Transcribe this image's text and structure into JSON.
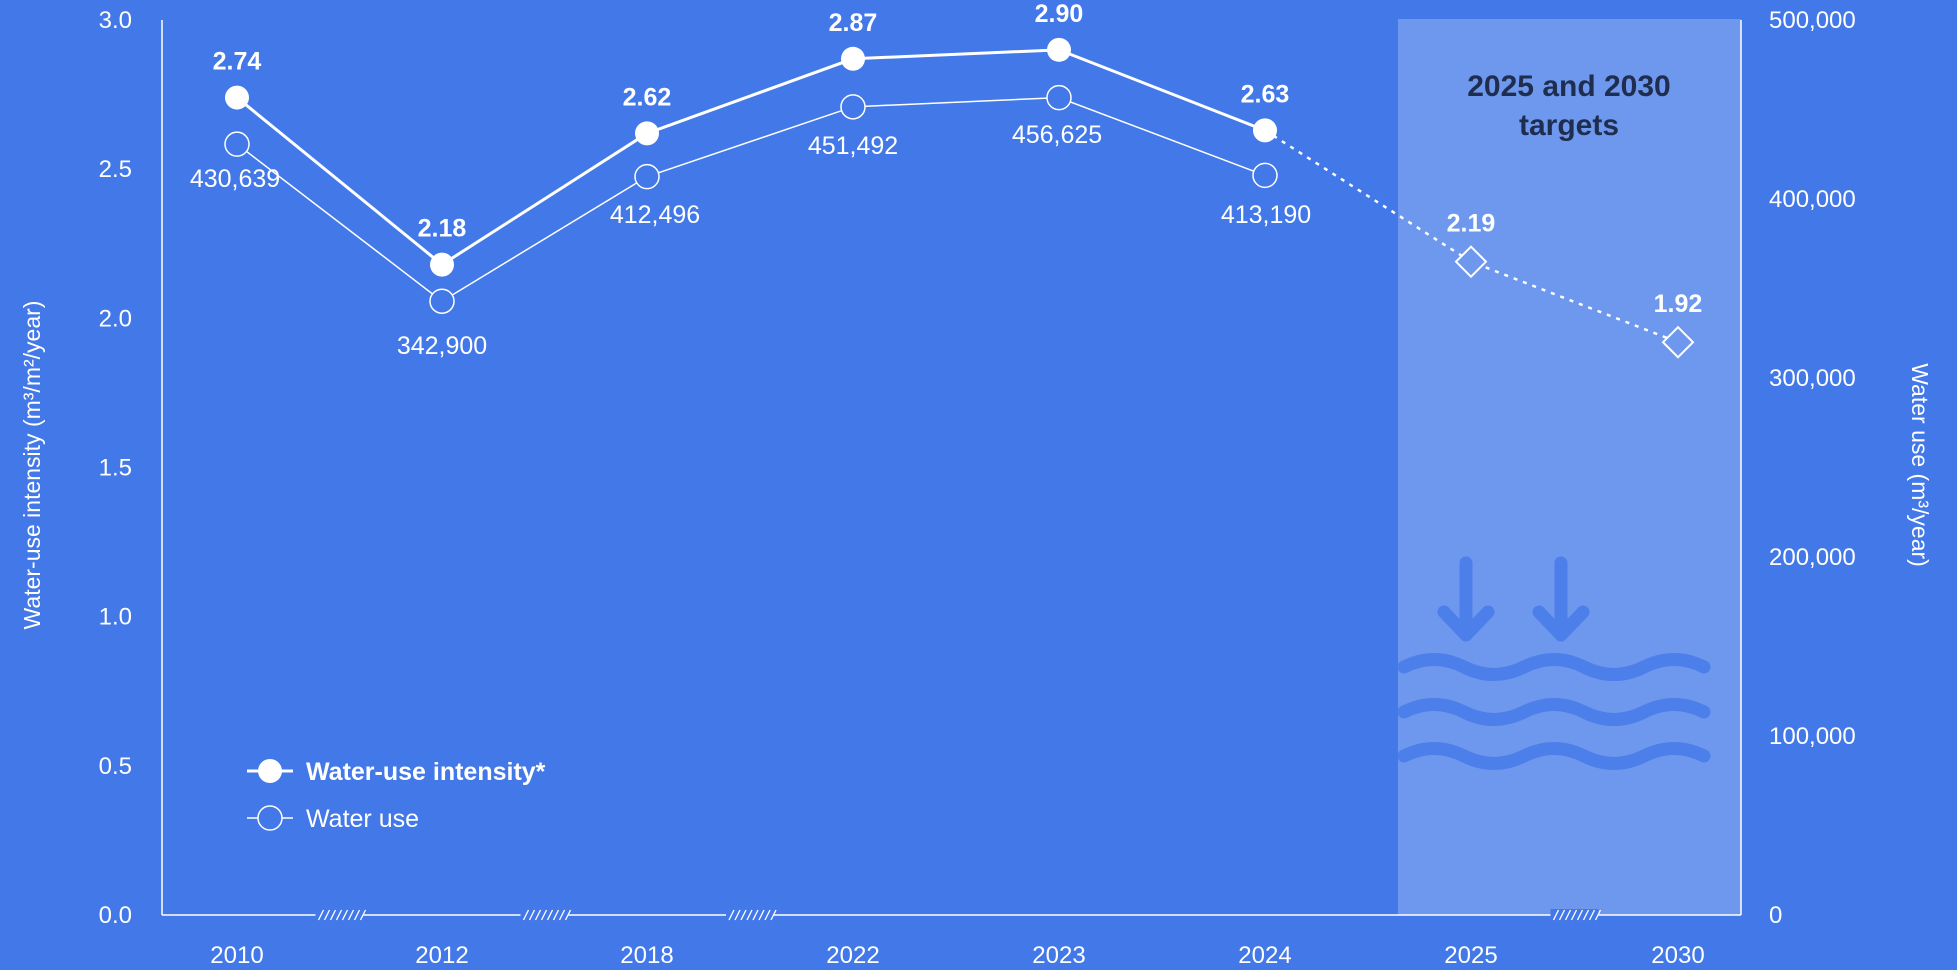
{
  "chart_data": {
    "type": "line",
    "categories": [
      "2010",
      "2012",
      "2018",
      "2022",
      "2023",
      "2024",
      "2025",
      "2030"
    ],
    "series": [
      {
        "name": "Water-use intensity*",
        "axis": "left",
        "unit": "m³/m²/year",
        "values": [
          2.74,
          2.18,
          2.62,
          2.87,
          2.9,
          2.63,
          null,
          null
        ],
        "labels": [
          "2.74",
          "2.18",
          "2.62",
          "2.87",
          "2.90",
          "2.63",
          "",
          ""
        ]
      },
      {
        "name": "Water use",
        "axis": "right",
        "unit": "m³/year",
        "values": [
          430639,
          342900,
          412496,
          451492,
          456625,
          413190,
          null,
          null
        ],
        "labels": [
          "430,639",
          "342,900",
          "412,496",
          "451,492",
          "456,625",
          "413,190",
          "",
          ""
        ]
      },
      {
        "name": "targets",
        "axis": "left",
        "style": "dashed",
        "marker": "diamond",
        "values": [
          null,
          null,
          null,
          null,
          null,
          2.63,
          2.19,
          1.92
        ],
        "labels": [
          "",
          "",
          "",
          "",
          "",
          "",
          "2.19",
          "1.92"
        ]
      }
    ],
    "y_left": {
      "label": "Water-use intensity (m³/m²/year)",
      "ylim": [
        0,
        3.0
      ],
      "ticks": [
        "0.0",
        "0.5",
        "1.0",
        "1.5",
        "2.0",
        "2.5",
        "3.0"
      ]
    },
    "y_right": {
      "label": "Water use (m³/year)",
      "ylim": [
        0,
        500000
      ],
      "ticks": [
        "0",
        "100,000",
        "200,000",
        "300,000",
        "400,000",
        "500,000"
      ]
    },
    "target_region": {
      "title_line1": "2025 and 2030",
      "title_line2": "targets",
      "categories": [
        "2025",
        "2030"
      ]
    },
    "axis_breaks_after": [
      "2010",
      "2012",
      "2018",
      "2025"
    ],
    "legend": {
      "position": "bottom-left"
    },
    "grid": false
  },
  "colors": {
    "background": "#4278e8",
    "target_region": "#6e97ee",
    "line": "#ffffff",
    "target_title": "#1f2d4f",
    "water_icon": "#4d7fea"
  },
  "icons": [
    "water-waves-down-arrows-icon"
  ]
}
